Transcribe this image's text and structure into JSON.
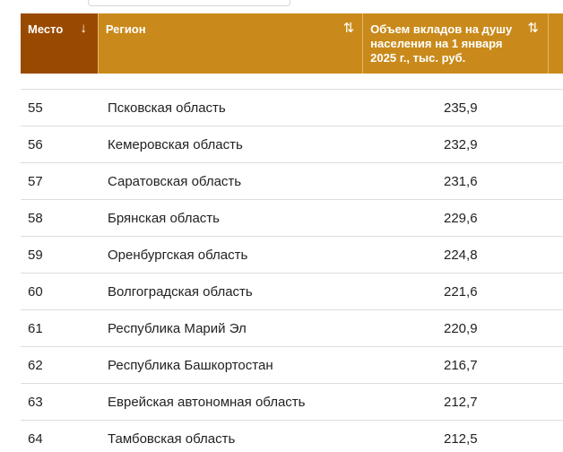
{
  "table": {
    "columns": {
      "rank": "Место",
      "region": "Регион",
      "deposit": "Объем вкладов на душу населения на 1 января 2025 г., тыс. руб."
    },
    "sort_icons": {
      "rank": "↓",
      "region": "⇅",
      "deposit": "⇅"
    },
    "rows": [
      {
        "rank": "55",
        "region": "Псковская область",
        "value": "235,9"
      },
      {
        "rank": "56",
        "region": "Кемеровская область",
        "value": "232,9"
      },
      {
        "rank": "57",
        "region": "Саратовская область",
        "value": "231,6"
      },
      {
        "rank": "58",
        "region": "Брянская область",
        "value": "229,6"
      },
      {
        "rank": "59",
        "region": "Оренбургская область",
        "value": "224,8"
      },
      {
        "rank": "60",
        "region": "Волгоградская область",
        "value": "221,6"
      },
      {
        "rank": "61",
        "region": "Республика Марий Эл",
        "value": "220,9"
      },
      {
        "rank": "62",
        "region": "Республика Башкортостан",
        "value": "216,7"
      },
      {
        "rank": "63",
        "region": "Еврейская автономная область",
        "value": "212,7"
      },
      {
        "rank": "64",
        "region": "Тамбовская область",
        "value": "212,5"
      }
    ]
  },
  "colors": {
    "header_primary": "#c98a1b",
    "header_active": "#9a4a00"
  }
}
